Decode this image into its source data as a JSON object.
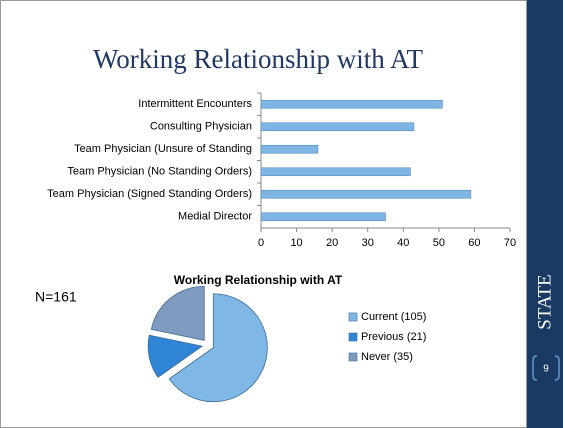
{
  "slide": {
    "title": "Working Relationship with AT",
    "note": "N=161",
    "sidebar": "STATE",
    "page": "9"
  },
  "chart_data": [
    {
      "type": "hbar",
      "categories": [
        "Intermittent Encounters",
        "Consulting Physician",
        "Team Physician (Unsure of Standing",
        "Team Physician (No Standing Orders)",
        "Team Physician (Signed Standing Orders)",
        "Medial Director"
      ],
      "values": [
        51,
        43,
        16,
        42,
        59,
        35
      ],
      "color": "#7fb5e4",
      "xlim": [
        0,
        70
      ],
      "xticks": [
        0,
        10,
        20,
        30,
        40,
        50,
        60,
        70
      ]
    },
    {
      "type": "pie",
      "title": "Working Relationship with AT",
      "categories": [
        "Current (105)",
        "Previous (21)",
        "Never (35)"
      ],
      "values": [
        105,
        21,
        35
      ],
      "colors": [
        "#7fb8e6",
        "#2f86d6",
        "#7f9bc0"
      ]
    }
  ]
}
